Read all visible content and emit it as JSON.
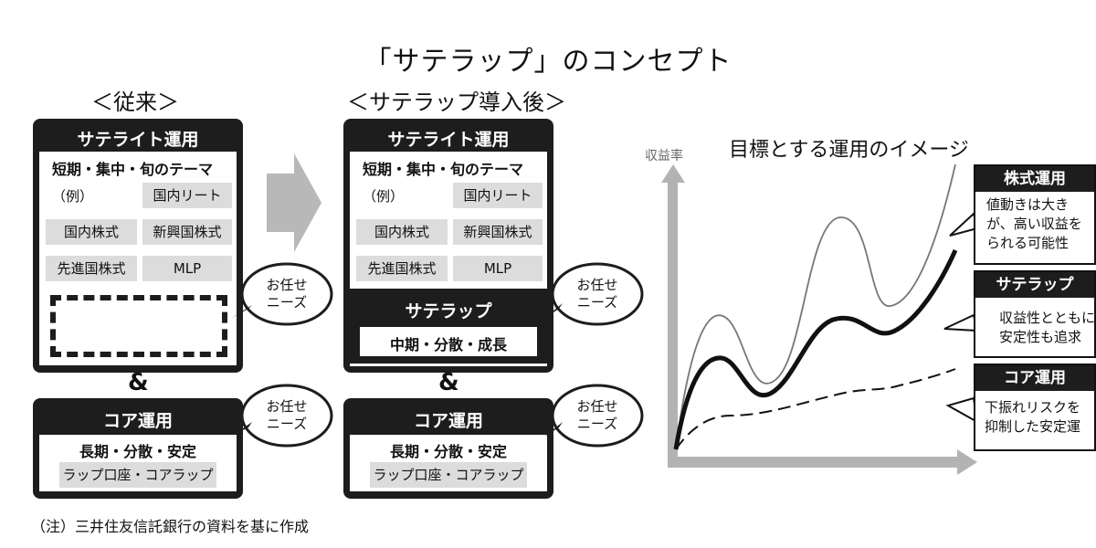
{
  "title": "「サテラップ」のコンセプト",
  "before": {
    "heading": "＜従来＞",
    "satellite": {
      "title": "サテライト運用",
      "theme": "短期・集中・旬のテーマ",
      "example": "（例）",
      "chips": [
        "国内リート",
        "国内株式",
        "新興国株式",
        "先進国株式",
        "MLP"
      ]
    },
    "bubble": "お任せ\nニーズ",
    "core": {
      "title": "コア運用",
      "subtitle": "長期・分散・安定",
      "chip": "ラップ口座・コアラップ"
    }
  },
  "after": {
    "heading": "＜サテラップ導入後＞",
    "satellite": {
      "title": "サテライト運用",
      "theme": "短期・集中・旬のテーマ",
      "example": "（例）",
      "chips": [
        "国内リート",
        "国内株式",
        "新興国株式",
        "先進国株式",
        "MLP"
      ]
    },
    "saterap": {
      "title": "サテラップ",
      "subtitle": "中期・分散・成長"
    },
    "core": {
      "title": "コア運用",
      "subtitle": "長期・分散・安定",
      "chip": "ラップ口座・コアラップ"
    }
  },
  "bubbles": [
    "お任せ\nニーズ",
    "お任せ\nニーズ",
    "お任せ\nニーズ",
    "お任せ\nニーズ"
  ],
  "amp": "&",
  "note": "（注）三井住友信託銀行の資料を基に作成",
  "chart": {
    "title": "目標とする運用のイメージ",
    "y_label": "収益率",
    "labels": [
      {
        "title": "株式運用",
        "lines": [
          "値動きは大き",
          "が、高い収益を",
          "られる可能性"
        ]
      },
      {
        "title": "サテラップ",
        "lines": [
          "収益性とともに",
          "安定性も追求"
        ]
      },
      {
        "title": "コア運用",
        "lines": [
          "下振れリスクを",
          "抑制した安定運"
        ]
      }
    ]
  },
  "colors": {
    "dark": "#1d1d1d",
    "chip": "#dcdcdc",
    "arrow": "#b8b8b8"
  }
}
